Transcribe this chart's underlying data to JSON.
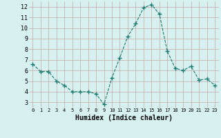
{
  "x": [
    0,
    1,
    2,
    3,
    4,
    5,
    6,
    7,
    8,
    9,
    10,
    11,
    12,
    13,
    14,
    15,
    16,
    17,
    18,
    19,
    20,
    21,
    22,
    23
  ],
  "y": [
    6.6,
    5.9,
    5.9,
    5.0,
    4.6,
    4.0,
    4.0,
    4.0,
    3.8,
    2.8,
    5.3,
    7.2,
    9.2,
    10.4,
    11.9,
    12.2,
    11.3,
    7.8,
    6.2,
    6.0,
    6.4,
    5.1,
    5.2,
    4.6
  ],
  "xlabel": "Humidex (Indice chaleur)",
  "line_color": "#1a7a6e",
  "marker_color": "#1a7a6e",
  "bg_color": "#d7f0f0",
  "grid_color": "#c8a8a8",
  "xlim": [
    -0.5,
    23.5
  ],
  "ylim": [
    2.5,
    12.5
  ],
  "yticks": [
    3,
    4,
    5,
    6,
    7,
    8,
    9,
    10,
    11,
    12
  ],
  "xticks": [
    0,
    1,
    2,
    3,
    4,
    5,
    6,
    7,
    8,
    9,
    10,
    11,
    12,
    13,
    14,
    15,
    16,
    17,
    18,
    19,
    20,
    21,
    22,
    23
  ]
}
